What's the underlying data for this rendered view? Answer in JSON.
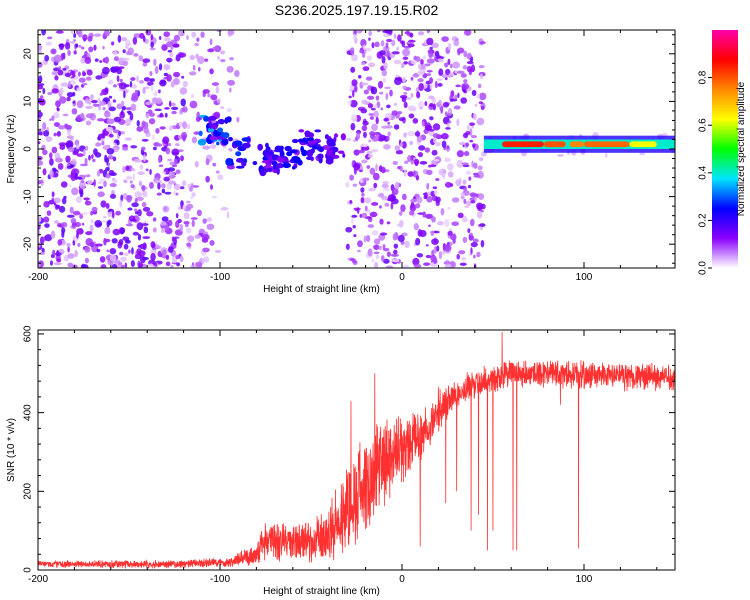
{
  "title": "S236.2025.197.19.15.R02",
  "chart_data": [
    {
      "type": "heatmap",
      "xlabel": "Height of straight line (km)",
      "ylabel": "Frequency (Hz)",
      "xlim": [
        -200,
        150
      ],
      "ylim": [
        -25,
        25
      ],
      "xticks": [
        -200,
        -100,
        0,
        100
      ],
      "xtick_labels": [
        "-200",
        "-100",
        "0",
        "100"
      ],
      "yticks": [
        -20,
        -10,
        0,
        10,
        20
      ],
      "ytick_labels": [
        "-20",
        "-10",
        "0",
        "10",
        "20"
      ],
      "colorbar": {
        "label": "Normalized spectral amplitude",
        "range": [
          0,
          1
        ],
        "ticks": [
          0.0,
          0.2,
          0.4,
          0.6,
          0.8
        ],
        "tick_labels": [
          "0.0",
          "0.2",
          "0.4",
          "0.6",
          "0.8"
        ],
        "colors": [
          "#ffffff",
          "#8a00ff",
          "#0000ff",
          "#00e5ff",
          "#00ff00",
          "#ffff00",
          "#ff8800",
          "#ff0000",
          "#ff00aa"
        ]
      },
      "regions": [
        {
          "x": [
            -200,
            -120
          ],
          "y": [
            -25,
            25
          ],
          "density": 0.55,
          "amplitude": [
            0.02,
            0.18
          ]
        },
        {
          "x": [
            -120,
            -100
          ],
          "y": [
            -25,
            25
          ],
          "density": 0.3,
          "amplitude": [
            0.02,
            0.12
          ]
        },
        {
          "x": [
            -100,
            -90
          ],
          "y": [
            -25,
            25
          ],
          "density": 0.12,
          "amplitude": [
            0.02,
            0.08
          ]
        },
        {
          "x": [
            -30,
            45
          ],
          "y": [
            -25,
            25
          ],
          "density": 0.5,
          "amplitude": [
            0.02,
            0.16
          ]
        },
        {
          "x": [
            45,
            150
          ],
          "y": [
            -2,
            3
          ],
          "density": 0.2,
          "amplitude": [
            0.02,
            0.05
          ]
        }
      ],
      "features": [
        {
          "x": -105,
          "y": 4,
          "amplitude": 0.35
        },
        {
          "x": -100,
          "y": 4,
          "amplitude": 0.3
        },
        {
          "x": -90,
          "y": -1,
          "amplitude": 0.28
        },
        {
          "x": -75,
          "y": -2,
          "amplitude": 0.25
        },
        {
          "x": -70,
          "y": -3,
          "amplitude": 0.22
        },
        {
          "x": -62,
          "y": -1,
          "amplitude": 0.25
        },
        {
          "x": -50,
          "y": 2,
          "amplitude": 0.25
        },
        {
          "x": -45,
          "y": 0,
          "amplitude": 0.22
        },
        {
          "x": -38,
          "y": 1,
          "amplitude": 0.2
        }
      ],
      "ridge": {
        "y": 1,
        "x": [
          45,
          150
        ],
        "segments": [
          {
            "x": [
              45,
              50
            ],
            "amplitude": 0.4
          },
          {
            "x": [
              55,
              78
            ],
            "amplitude": 0.85
          },
          {
            "x": [
              78,
              90
            ],
            "amplitude": 0.8
          },
          {
            "x": [
              92,
              100
            ],
            "amplitude": 0.75
          },
          {
            "x": [
              100,
              125
            ],
            "amplitude": 0.78
          },
          {
            "x": [
              125,
              140
            ],
            "amplitude": 0.62
          }
        ]
      }
    },
    {
      "type": "line",
      "xlabel": "Height of straight line (km)",
      "ylabel": "SNR (10 * v/v)",
      "xlim": [
        -200,
        150
      ],
      "ylim": [
        0,
        610
      ],
      "xticks": [
        -200,
        -100,
        0,
        100
      ],
      "xtick_labels": [
        "-200",
        "-100",
        "0",
        "100"
      ],
      "yticks": [
        0,
        200,
        400,
        600
      ],
      "ytick_labels": [
        "0",
        "200",
        "400",
        "600"
      ],
      "series": [
        {
          "color": "#ff3030",
          "trend": [
            {
              "x": -200,
              "base": 15,
              "noise": 10
            },
            {
              "x": -120,
              "base": 15,
              "noise": 12
            },
            {
              "x": -95,
              "base": 20,
              "noise": 15
            },
            {
              "x": -82,
              "base": 35,
              "noise": 30
            },
            {
              "x": -75,
              "base": 75,
              "noise": 60
            },
            {
              "x": -50,
              "base": 70,
              "noise": 60
            },
            {
              "x": -40,
              "base": 90,
              "noise": 80
            },
            {
              "x": -30,
              "base": 160,
              "noise": 140
            },
            {
              "x": -20,
              "base": 220,
              "noise": 150
            },
            {
              "x": -10,
              "base": 270,
              "noise": 130
            },
            {
              "x": 0,
              "base": 300,
              "noise": 100
            },
            {
              "x": 10,
              "base": 340,
              "noise": 80
            },
            {
              "x": 20,
              "base": 400,
              "noise": 60
            },
            {
              "x": 30,
              "base": 450,
              "noise": 50
            },
            {
              "x": 45,
              "base": 480,
              "noise": 45
            },
            {
              "x": 60,
              "base": 500,
              "noise": 40
            },
            {
              "x": 80,
              "base": 500,
              "noise": 40
            },
            {
              "x": 100,
              "base": 495,
              "noise": 40
            },
            {
              "x": 150,
              "base": 490,
              "noise": 40
            }
          ],
          "spikes_up": [
            {
              "x": -15,
              "y": 500
            },
            {
              "x": -28,
              "y": 430
            },
            {
              "x": 55,
              "y": 605
            },
            {
              "x": 20,
              "y": 465
            }
          ],
          "dips": [
            {
              "x": 10,
              "y": 60
            },
            {
              "x": 24,
              "y": 170
            },
            {
              "x": 30,
              "y": 200
            },
            {
              "x": 38,
              "y": 100
            },
            {
              "x": 42,
              "y": 140
            },
            {
              "x": 47,
              "y": 50
            },
            {
              "x": 50,
              "y": 100
            },
            {
              "x": 55,
              "y": 50
            },
            {
              "x": 61,
              "y": 50
            },
            {
              "x": 63,
              "y": 50
            },
            {
              "x": 97,
              "y": 55
            },
            {
              "x": 87,
              "y": 420
            }
          ]
        }
      ]
    }
  ]
}
